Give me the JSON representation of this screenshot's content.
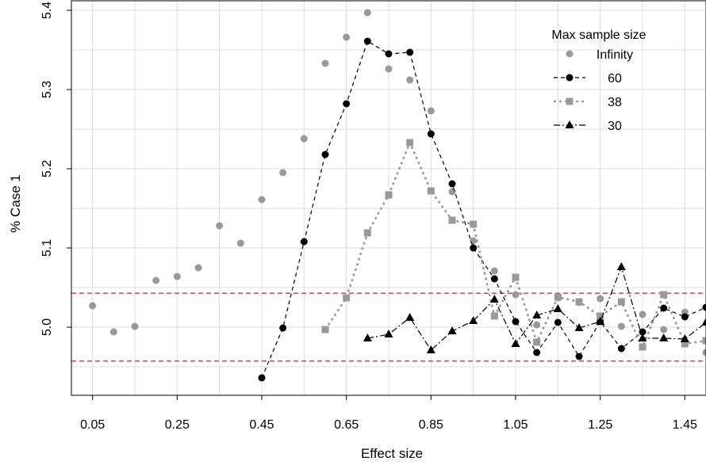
{
  "chart_data": {
    "type": "line",
    "xlabel": "Effect size",
    "ylabel": "% Case 1",
    "xlim": [
      0.0,
      1.5
    ],
    "ylim": [
      4.914,
      5.412
    ],
    "x_ticks": [
      0.05,
      0.25,
      0.45,
      0.65,
      0.85,
      1.05,
      1.25,
      1.45
    ],
    "x_tick_labels": [
      "0.05",
      "0.25",
      "0.45",
      "0.65",
      "0.85",
      "1.05",
      "1.25",
      "1.45"
    ],
    "y_ticks": [
      5.0,
      5.1,
      5.2,
      5.3,
      5.4
    ],
    "y_tick_labels": [
      "5.0",
      "5.1",
      "5.2",
      "5.3",
      "5.4"
    ],
    "grid": true,
    "reference_lines": [
      5.0428,
      4.9572
    ],
    "legend": {
      "title": "Max sample size",
      "position": "top-right",
      "entries": [
        "Infinity",
        "60",
        "38",
        "30"
      ]
    },
    "series": [
      {
        "name": "Infinity",
        "marker": "circle",
        "color": "#999999",
        "line": "none",
        "x": [
          0.05,
          0.1,
          0.15,
          0.2,
          0.25,
          0.3,
          0.35,
          0.4,
          0.45,
          0.5,
          0.55,
          0.6,
          0.65,
          0.7,
          0.75,
          0.8,
          0.85,
          0.9,
          0.95,
          1.0,
          1.05,
          1.1,
          1.15,
          1.2,
          1.25,
          1.3,
          1.35,
          1.4,
          1.45,
          1.5
        ],
        "y": [
          5.027,
          4.994,
          5.001,
          5.059,
          5.064,
          5.075,
          5.128,
          5.106,
          5.161,
          5.195,
          5.238,
          5.333,
          5.366,
          5.397,
          5.326,
          5.312,
          5.273,
          5.171,
          5.109,
          5.071,
          5.041,
          5.003,
          5.037,
          5.031,
          5.036,
          5.001,
          5.016,
          4.997,
          5.019,
          4.968
        ]
      },
      {
        "name": "60",
        "marker": "circle",
        "color": "#000000",
        "line": "dashed",
        "x": [
          0.45,
          0.5,
          0.55,
          0.6,
          0.65,
          0.7,
          0.75,
          0.8,
          0.85,
          0.9,
          0.95,
          1.0,
          1.05,
          1.1,
          1.15,
          1.2,
          1.25,
          1.3,
          1.35,
          1.4,
          1.45,
          1.5
        ],
        "y": [
          4.936,
          4.999,
          5.108,
          5.218,
          5.282,
          5.361,
          5.345,
          5.347,
          5.244,
          5.181,
          5.1,
          5.061,
          5.007,
          4.968,
          5.006,
          4.963,
          5.007,
          4.973,
          4.994,
          5.024,
          5.013,
          5.025
        ]
      },
      {
        "name": "38",
        "marker": "square",
        "color": "#999999",
        "line": "dotted",
        "x": [
          0.6,
          0.65,
          0.7,
          0.75,
          0.8,
          0.85,
          0.9,
          0.95,
          1.0,
          1.05,
          1.1,
          1.15,
          1.2,
          1.25,
          1.3,
          1.35,
          1.4,
          1.45,
          1.5
        ],
        "y": [
          4.997,
          5.037,
          5.119,
          5.167,
          5.233,
          5.172,
          5.135,
          5.13,
          5.014,
          5.063,
          4.981,
          5.038,
          5.032,
          5.014,
          5.032,
          4.975,
          5.041,
          4.979,
          4.983
        ]
      },
      {
        "name": "30",
        "marker": "triangle",
        "color": "#000000",
        "line": "dashdot",
        "x": [
          0.7,
          0.75,
          0.8,
          0.85,
          0.9,
          0.95,
          1.0,
          1.05,
          1.1,
          1.15,
          1.2,
          1.25,
          1.3,
          1.35,
          1.4,
          1.45,
          1.5
        ],
        "y": [
          4.986,
          4.991,
          5.012,
          4.971,
          4.995,
          5.008,
          5.035,
          4.979,
          5.015,
          5.023,
          4.999,
          5.007,
          5.076,
          4.986,
          4.986,
          4.985,
          5.006
        ]
      }
    ]
  }
}
